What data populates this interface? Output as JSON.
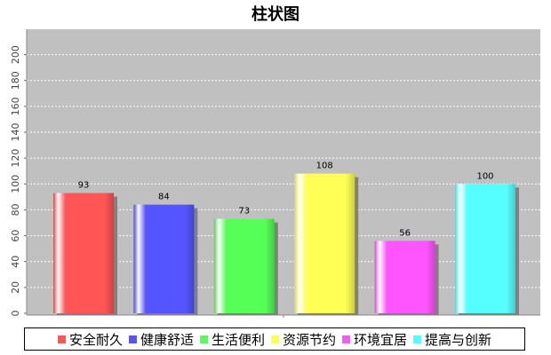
{
  "chart_data": {
    "type": "bar",
    "title": "柱状图",
    "xlabel": "",
    "ylabel": "",
    "categories": [
      "安全耐久",
      "健康舒适",
      "生活便利",
      "资源节约",
      "环境宜居",
      "提高与创新"
    ],
    "values": [
      93,
      84,
      73,
      108,
      56,
      100
    ],
    "colors": [
      "#ff5555",
      "#5555ff",
      "#55ff55",
      "#ffff55",
      "#ff55ff",
      "#55ffff"
    ],
    "ylim": [
      0,
      210
    ],
    "yticks": [
      0,
      20,
      40,
      60,
      80,
      100,
      120,
      140,
      160,
      180,
      200
    ],
    "grid": true,
    "plot_background": "#c0c0c0",
    "legend_position": "bottom"
  }
}
